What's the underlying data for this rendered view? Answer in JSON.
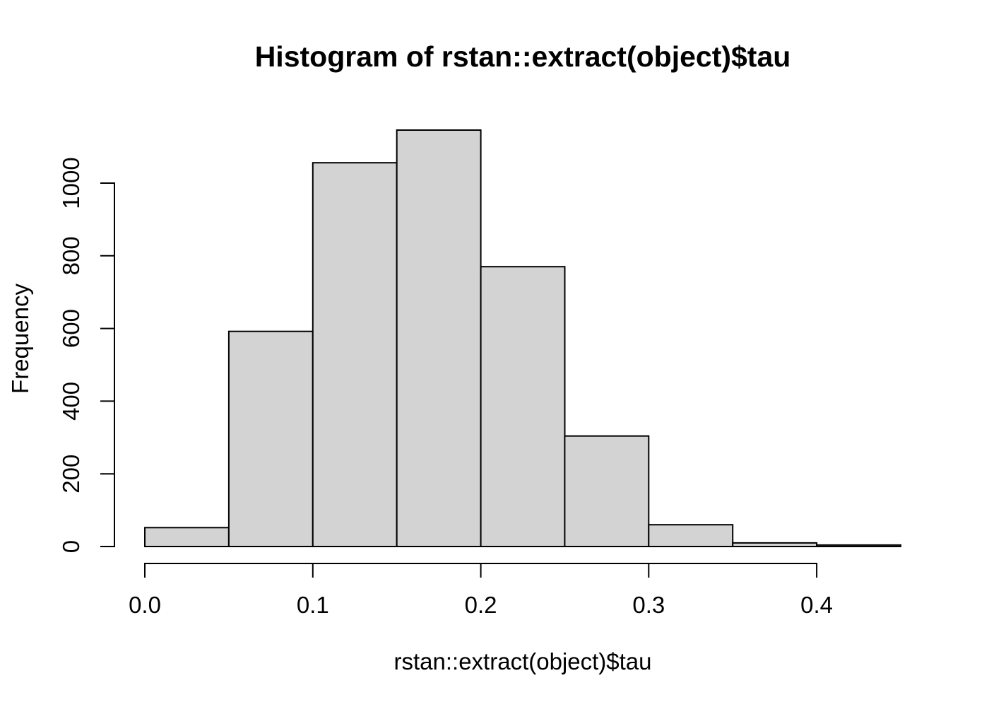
{
  "chart_data": {
    "type": "bar",
    "subtype": "histogram",
    "title": "Histogram of rstan::extract(object)$tau",
    "xlabel": "rstan::extract(object)$tau",
    "ylabel": "Frequency",
    "bin_start": 0,
    "bin_width": 0.05,
    "bin_edges": [
      0,
      0.05,
      0.1,
      0.15,
      0.2,
      0.25,
      0.3,
      0.35,
      0.4,
      0.45
    ],
    "counts": [
      52,
      592,
      1056,
      1146,
      770,
      304,
      60,
      10,
      4
    ],
    "x_tick_values": [
      0,
      0.1,
      0.2,
      0.3,
      0.4
    ],
    "x_tick_labels": [
      "0.0",
      "0.1",
      "0.2",
      "0.3",
      "0.4"
    ],
    "y_tick_values": [
      0,
      200,
      400,
      600,
      800,
      1000
    ],
    "y_tick_labels": [
      "0",
      "200",
      "400",
      "600",
      "800",
      "1000"
    ],
    "xlim": [
      0,
      0.45
    ],
    "ylim": [
      0,
      1150
    ],
    "grid": false,
    "legend": false,
    "bar_fill": "#d3d3d3",
    "bar_stroke": "#000000",
    "axis_color": "#000000",
    "text_color": "#000000",
    "background": "#ffffff"
  }
}
